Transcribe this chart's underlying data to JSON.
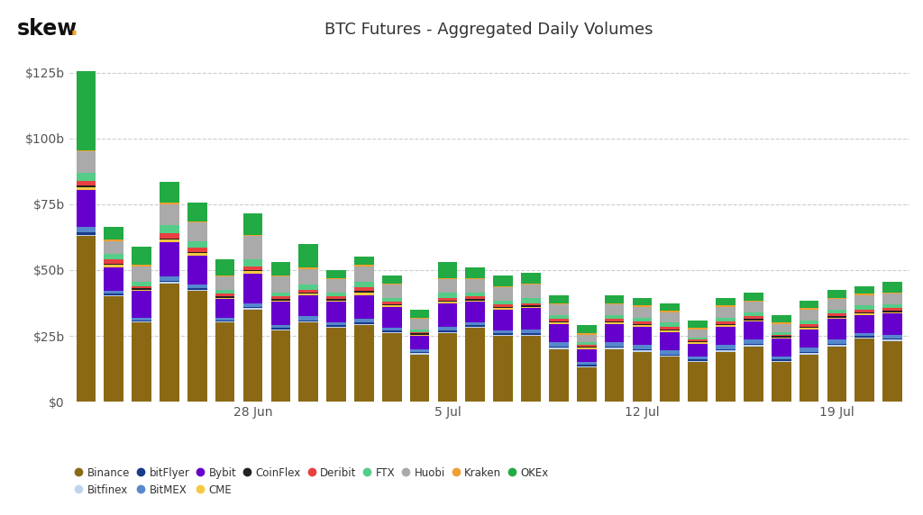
{
  "title": "BTC Futures - Aggregated Daily Volumes",
  "background_color": "#ffffff",
  "grid_color": "#cccccc",
  "exchanges": [
    "Binance",
    "Bitfinex",
    "bitFlyer",
    "BitMEX",
    "Bybit",
    "CME",
    "CoinFlex",
    "Deribit",
    "FTX",
    "Huobi",
    "Kraken",
    "OKEx"
  ],
  "colors": {
    "Binance": "#8B6914",
    "Bitfinex": "#c0d4f0",
    "bitFlyer": "#1a3a8a",
    "BitMEX": "#5588cc",
    "Bybit": "#6600cc",
    "CME": "#f5c842",
    "CoinFlex": "#222222",
    "Deribit": "#e84040",
    "FTX": "#55cc88",
    "Huobi": "#aaaaaa",
    "Kraken": "#f0a030",
    "OKEx": "#22aa44"
  },
  "xtick_labels": [
    "28 Jun",
    "5 Jul",
    "12 Jul",
    "19 Jul"
  ],
  "xtick_positions": [
    6,
    13,
    20,
    27
  ],
  "ylim": [
    0,
    135
  ],
  "yticks": [
    0,
    25,
    50,
    75,
    100,
    125
  ],
  "ytick_labels": [
    "$0",
    "$25b",
    "$50b",
    "$75b",
    "$100b",
    "$125b"
  ],
  "n_bars": 30,
  "data": {
    "Binance": [
      63,
      40,
      30,
      45,
      42,
      30,
      35,
      27,
      30,
      28,
      29,
      26,
      18,
      26,
      28,
      25,
      25,
      20,
      13,
      20,
      19,
      17,
      15,
      19,
      21,
      15,
      18,
      21,
      24,
      23
    ],
    "Bitfinex": [
      0.5,
      0.5,
      0.5,
      0.5,
      0.5,
      0.5,
      0.5,
      0.5,
      0.5,
      0.5,
      0.5,
      0.5,
      0.5,
      0.5,
      0.5,
      0.5,
      0.5,
      0.5,
      0.5,
      0.5,
      0.5,
      0.5,
      0.5,
      0.5,
      0.5,
      0.5,
      0.5,
      0.5,
      0.5,
      0.5
    ],
    "bitFlyer": [
      1.0,
      0.5,
      0.5,
      0.5,
      0.5,
      0.5,
      0.5,
      0.5,
      0.5,
      0.5,
      0.5,
      0.5,
      0.5,
      0.5,
      0.5,
      0.5,
      0.5,
      0.5,
      0.5,
      0.5,
      0.5,
      0.5,
      0.5,
      0.5,
      0.5,
      0.5,
      0.5,
      0.5,
      0.5,
      0.5
    ],
    "BitMEX": [
      2.0,
      1.0,
      1.0,
      1.5,
      1.5,
      1.0,
      1.5,
      1.0,
      1.5,
      1.0,
      1.5,
      1.0,
      1.0,
      1.5,
      1.0,
      1.0,
      1.5,
      1.5,
      1.0,
      1.5,
      1.5,
      1.5,
      1.0,
      1.5,
      1.5,
      1.0,
      1.5,
      1.5,
      1.0,
      1.5
    ],
    "Bybit": [
      14,
      9,
      10,
      13,
      11,
      7,
      11,
      9,
      8,
      8,
      9,
      8,
      5,
      9,
      8,
      8,
      8,
      7,
      5,
      7,
      7,
      7,
      5,
      7,
      7,
      7,
      7,
      8,
      7,
      8
    ],
    "CME": [
      1.0,
      1.0,
      0.5,
      1.0,
      1.0,
      0.5,
      1.0,
      0.5,
      0.5,
      0.5,
      1.0,
      0.5,
      0.5,
      0.5,
      0.5,
      0.5,
      0.5,
      0.5,
      0.5,
      0.5,
      0.5,
      0.5,
      0.5,
      0.5,
      0.5,
      0.5,
      0.5,
      0.5,
      0.5,
      0.5
    ],
    "CoinFlex": [
      0.5,
      0.5,
      0.5,
      0.5,
      0.5,
      0.5,
      0.5,
      0.5,
      0.5,
      0.5,
      0.5,
      0.5,
      0.5,
      0.5,
      0.5,
      0.5,
      0.5,
      0.5,
      0.5,
      0.5,
      0.5,
      0.5,
      0.5,
      0.5,
      0.5,
      0.5,
      0.5,
      0.5,
      0.5,
      0.5
    ],
    "Deribit": [
      2.0,
      1.5,
      1.0,
      2.0,
      1.5,
      1.0,
      1.5,
      1.0,
      1.0,
      1.0,
      1.5,
      1.0,
      0.5,
      1.0,
      1.0,
      1.0,
      1.0,
      1.0,
      0.5,
      1.0,
      1.0,
      1.0,
      0.5,
      1.0,
      1.0,
      0.5,
      1.0,
      1.0,
      1.0,
      1.0
    ],
    "FTX": [
      3.0,
      2.0,
      1.5,
      3.0,
      2.5,
      1.5,
      2.5,
      1.5,
      2.0,
      1.5,
      2.0,
      1.5,
      1.0,
      2.0,
      1.5,
      1.5,
      2.0,
      1.5,
      1.0,
      1.5,
      1.5,
      1.5,
      1.0,
      1.5,
      1.5,
      1.0,
      1.5,
      1.5,
      1.5,
      1.5
    ],
    "Huobi": [
      8,
      5,
      6,
      8,
      7,
      5,
      9,
      6,
      6,
      5,
      6,
      5,
      4,
      5,
      5,
      5,
      5,
      4,
      3,
      4,
      4,
      4,
      3,
      4,
      4,
      3,
      4,
      4,
      4,
      4
    ],
    "Kraken": [
      0.5,
      0.5,
      0.5,
      0.5,
      0.5,
      0.5,
      0.5,
      0.5,
      0.5,
      0.5,
      0.5,
      0.5,
      0.5,
      0.5,
      0.5,
      0.5,
      0.5,
      0.5,
      0.5,
      0.5,
      0.5,
      0.5,
      0.5,
      0.5,
      0.5,
      0.5,
      0.5,
      0.5,
      0.5,
      0.5
    ],
    "OKEx": [
      30,
      5,
      7,
      8,
      7,
      6,
      8,
      5,
      9,
      3,
      3,
      3,
      3,
      6,
      4,
      4,
      4,
      3,
      3,
      3,
      3,
      3,
      3,
      3,
      3,
      3,
      3,
      3,
      3,
      4
    ]
  },
  "legend_order": [
    "Binance",
    "Bitfinex",
    "bitFlyer",
    "BitMEX",
    "Bybit",
    "CME",
    "CoinFlex",
    "Deribit",
    "FTX",
    "Huobi",
    "Kraken",
    "OKEx"
  ]
}
